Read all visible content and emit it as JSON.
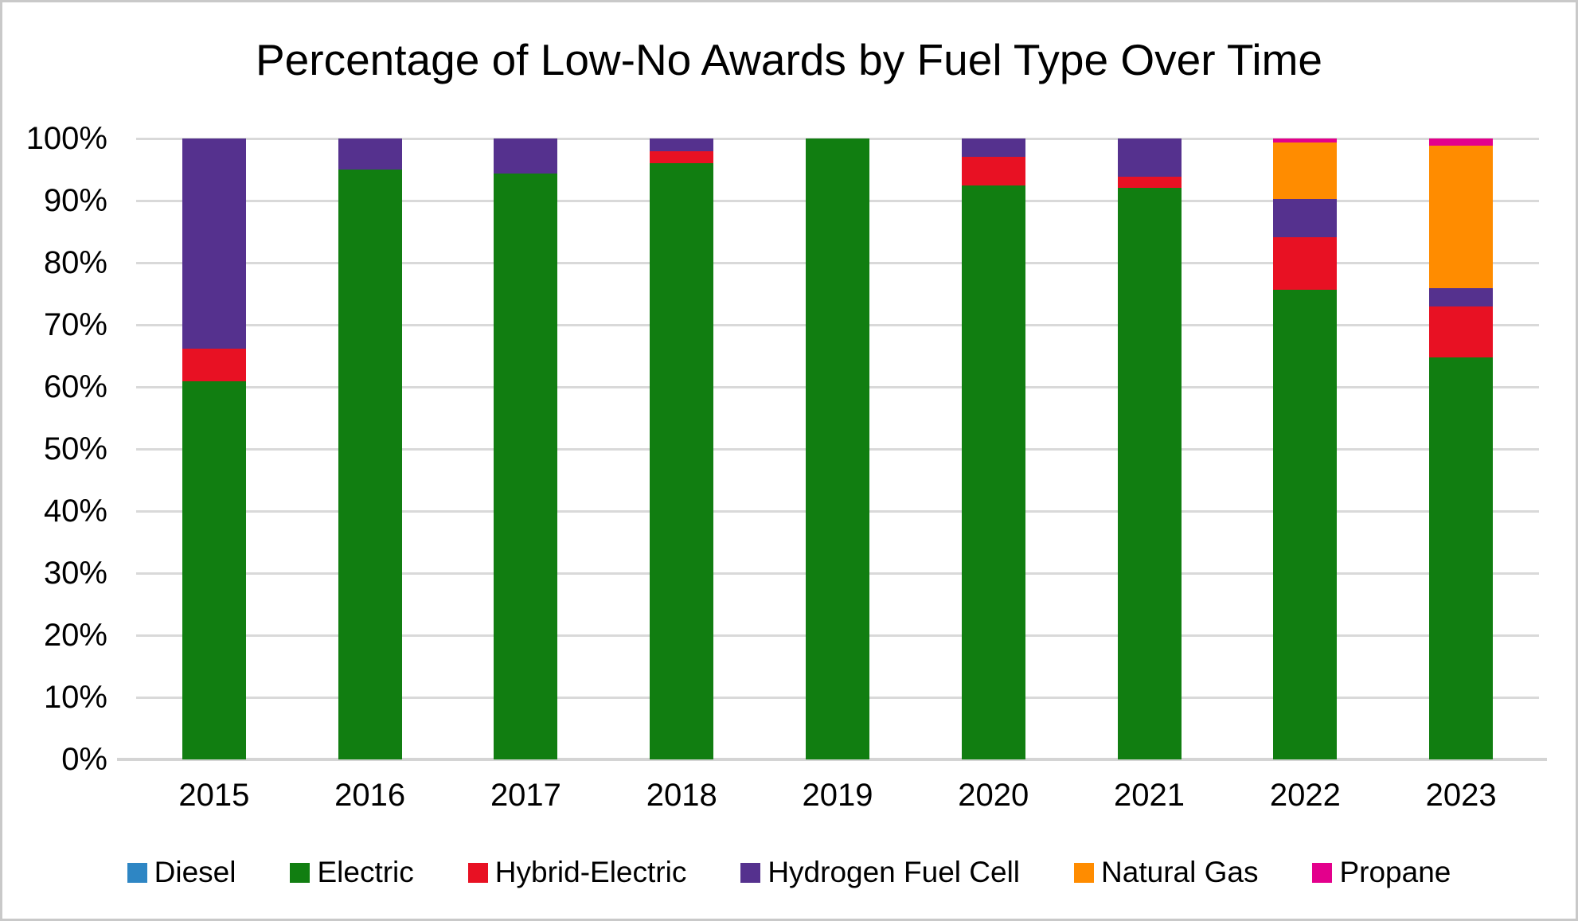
{
  "chart_data": {
    "type": "bar",
    "stacked": true,
    "percent_stacked": true,
    "title": "Percentage of Low-No Awards by Fuel Type Over Time",
    "categories": [
      "2015",
      "2016",
      "2017",
      "2018",
      "2019",
      "2020",
      "2021",
      "2022",
      "2023"
    ],
    "series": [
      {
        "name": "Diesel",
        "color": "#2e86c4",
        "values": [
          0,
          0,
          0,
          0,
          0,
          0,
          0,
          0,
          0
        ]
      },
      {
        "name": "Electric",
        "color": "#117e11",
        "values": [
          60.9,
          95,
          94.3,
          96,
          100,
          92.5,
          92.1,
          75.6,
          64.7
        ]
      },
      {
        "name": "Hybrid-Electric",
        "color": "#e81123",
        "values": [
          5.3,
          0,
          0,
          1.9,
          0,
          4.6,
          1.8,
          8.5,
          8.3
        ]
      },
      {
        "name": "Hydrogen Fuel Cell",
        "color": "#55318e",
        "values": [
          33.8,
          5,
          5.7,
          2.1,
          0,
          2.9,
          6.1,
          6.1,
          2.9
        ]
      },
      {
        "name": "Natural Gas",
        "color": "#ff8c00",
        "values": [
          0,
          0,
          0,
          0,
          0,
          0,
          0,
          9.2,
          22.9
        ]
      },
      {
        "name": "Propane",
        "color": "#e3008c",
        "values": [
          0,
          0,
          0,
          0,
          0,
          0,
          0,
          0.6,
          1.2
        ]
      }
    ],
    "xlabel": "",
    "ylabel": "",
    "ylim": [
      0,
      100
    ],
    "ytick_step": 10,
    "ytick_labels": [
      "0%",
      "10%",
      "20%",
      "30%",
      "40%",
      "50%",
      "60%",
      "70%",
      "80%",
      "90%",
      "100%"
    ],
    "grid": true,
    "gridline_color": "#d9d9d9",
    "axis_line_color": "#d4d4d4",
    "legend_position": "bottom"
  }
}
